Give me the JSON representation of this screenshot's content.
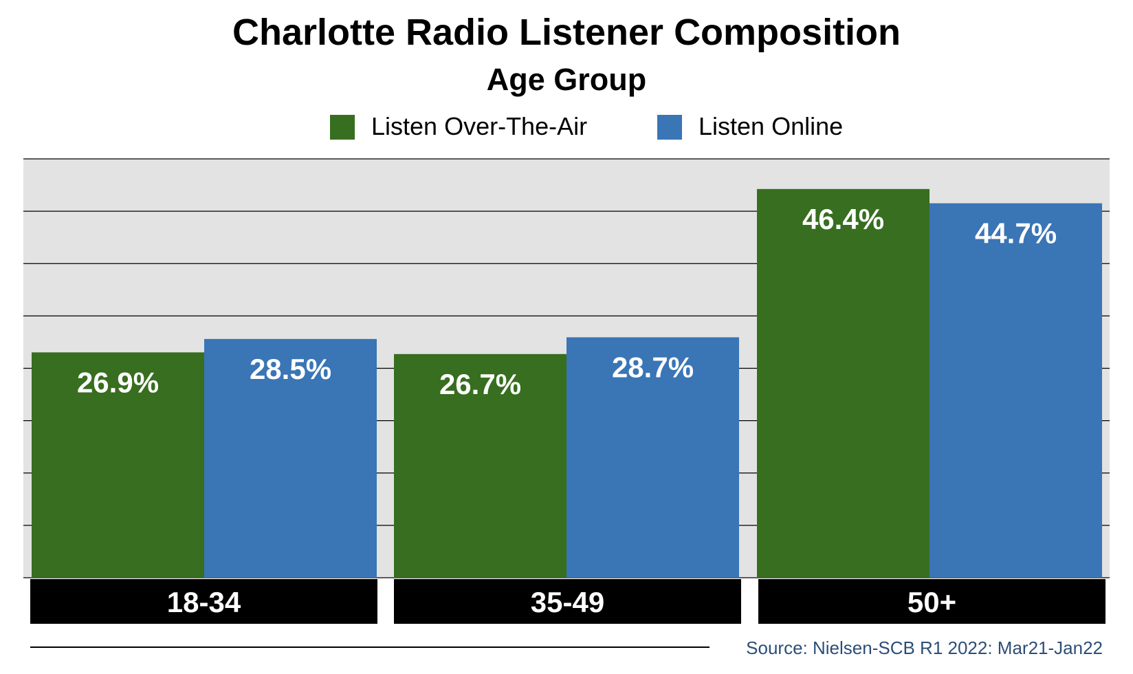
{
  "chart_data": {
    "type": "bar",
    "title": "Charlotte Radio Listener Composition",
    "subtitle": "Age Group",
    "categories": [
      "18-34",
      "35-49",
      "50+"
    ],
    "series": [
      {
        "name": "Listen Over-The-Air",
        "values": [
          26.9,
          26.7,
          46.4
        ],
        "labels": [
          "26.9%",
          "26.7%",
          "46.4%"
        ],
        "color": "#376e1f"
      },
      {
        "name": "Listen Online",
        "values": [
          28.5,
          28.7,
          44.7
        ],
        "labels": [
          "28.5%",
          "28.7%",
          "44.7%"
        ],
        "color": "#3a75b5"
      }
    ],
    "ylim": [
      0,
      50
    ],
    "grid": true,
    "legend_position": "top",
    "plot_background": "#e3e3e3",
    "category_label_background": "#000000",
    "category_label_color": "#ffffff",
    "data_label_color": "#ffffff"
  },
  "source": "Source: Nielsen-SCB R1 2022: Mar21-Jan22"
}
